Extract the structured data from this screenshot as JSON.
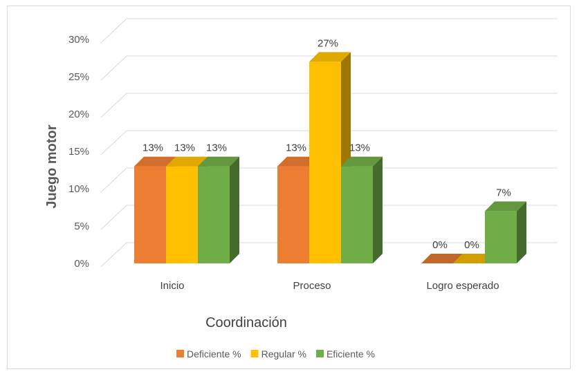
{
  "chart_data": {
    "type": "bar",
    "style": "3d-clustered-column",
    "categories": [
      "Inicio",
      "Proceso",
      "Logro esperado"
    ],
    "series": [
      {
        "name": "Deficiente %",
        "values": [
          13,
          13,
          0
        ],
        "labels": [
          "13%",
          "13%",
          "0%"
        ],
        "color": "#ED7D31"
      },
      {
        "name": "Regular %",
        "values": [
          13,
          27,
          0
        ],
        "labels": [
          "13%",
          "27%",
          "0%"
        ],
        "color": "#FFC000"
      },
      {
        "name": "Eficiente %",
        "values": [
          13,
          13,
          7
        ],
        "labels": [
          "13%",
          "13%",
          "7%"
        ],
        "color": "#70AD47"
      }
    ],
    "ylabel": "Juego motor",
    "xlabel": "Coordinación",
    "ylim": [
      0,
      30
    ],
    "yticks": [
      0,
      5,
      10,
      15,
      20,
      25,
      30
    ],
    "ytick_labels": [
      "0%",
      "5%",
      "10%",
      "15%",
      "20%",
      "25%",
      "30%"
    ],
    "grid": true,
    "legend_position": "bottom"
  }
}
